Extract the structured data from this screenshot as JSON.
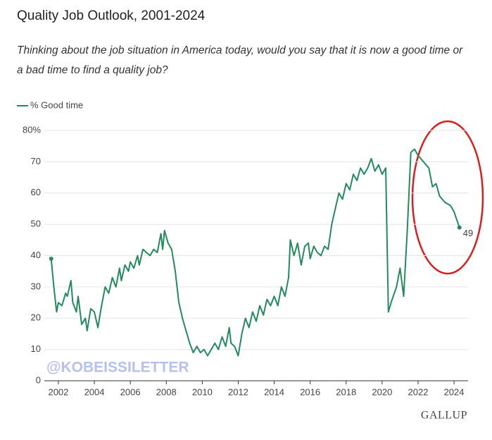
{
  "chart_data": {
    "type": "line",
    "title": "Quality Job Outlook, 2001-2024",
    "subtitle": "Thinking about the job situation in America today, would you say that it is now a good time or a bad time to find a quality job?",
    "watermark": "@KOBEISSILETTER",
    "source": "GALLUP",
    "x": [
      2001.6,
      2001.75,
      2001.9,
      2002.0,
      2002.2,
      2002.4,
      2002.5,
      2002.7,
      2002.8,
      2003.0,
      2003.1,
      2003.3,
      2003.5,
      2003.6,
      2003.8,
      2004.0,
      2004.2,
      2004.4,
      2004.6,
      2004.8,
      2005.0,
      2005.2,
      2005.4,
      2005.5,
      2005.7,
      2005.9,
      2006.0,
      2006.2,
      2006.4,
      2006.5,
      2006.7,
      2006.9,
      2007.1,
      2007.3,
      2007.5,
      2007.7,
      2007.8,
      2007.9,
      2008.1,
      2008.3,
      2008.5,
      2008.7,
      2008.9,
      2009.1,
      2009.3,
      2009.5,
      2009.7,
      2009.9,
      2010.1,
      2010.3,
      2010.5,
      2010.7,
      2010.9,
      2011.1,
      2011.3,
      2011.5,
      2011.6,
      2011.8,
      2012.0,
      2012.2,
      2012.4,
      2012.6,
      2012.8,
      2013.0,
      2013.2,
      2013.4,
      2013.6,
      2013.8,
      2014.0,
      2014.2,
      2014.4,
      2014.6,
      2014.8,
      2014.9,
      2015.1,
      2015.3,
      2015.5,
      2015.7,
      2015.9,
      2016.0,
      2016.2,
      2016.4,
      2016.6,
      2016.8,
      2017.0,
      2017.2,
      2017.4,
      2017.6,
      2017.8,
      2018.0,
      2018.2,
      2018.4,
      2018.6,
      2018.8,
      2019.0,
      2019.2,
      2019.4,
      2019.6,
      2019.8,
      2020.0,
      2020.2,
      2020.35,
      2020.5,
      2020.8,
      2021.0,
      2021.2,
      2021.4,
      2021.6,
      2021.8,
      2022.0,
      2022.3,
      2022.6,
      2022.8,
      2023.0,
      2023.2,
      2023.5,
      2023.8,
      2024.0,
      2024.3
    ],
    "series": [
      {
        "name": "% Good time",
        "color": "#238b5c",
        "values": [
          39,
          30,
          22,
          25,
          24,
          28,
          27,
          32,
          25,
          22,
          27,
          18,
          20,
          16,
          23,
          22,
          17,
          24,
          30,
          28,
          33,
          30,
          36,
          32,
          37,
          35,
          38,
          36,
          40,
          37,
          42,
          41,
          40,
          42,
          41,
          47,
          42,
          48,
          44,
          42,
          35,
          25,
          20,
          16,
          12,
          9,
          11,
          9,
          10,
          8,
          10,
          12,
          10,
          14,
          11,
          17,
          12,
          11,
          8,
          15,
          20,
          17,
          22,
          19,
          24,
          21,
          26,
          24,
          27,
          24,
          30,
          27,
          33,
          45,
          40,
          44,
          37,
          43,
          44,
          39,
          43,
          41,
          40,
          43,
          42,
          50,
          55,
          60,
          58,
          63,
          61,
          66,
          64,
          68,
          66,
          68,
          71,
          67,
          69,
          66,
          68,
          22,
          25,
          30,
          36,
          27,
          48,
          73,
          74,
          72,
          70,
          68,
          62,
          63,
          59,
          57,
          56,
          54,
          49
        ]
      }
    ],
    "xlim": [
      2001.22,
      2024.78
    ],
    "xticks": [
      2002,
      2004,
      2006,
      2008,
      2010,
      2012,
      2014,
      2016,
      2018,
      2020,
      2022,
      2024
    ],
    "ylim": [
      0,
      80
    ],
    "yticks": [
      0,
      10,
      20,
      30,
      40,
      50,
      60,
      70,
      {
        "value": 80,
        "label": "80%"
      }
    ],
    "grid": true,
    "legend": "top-left"
  }
}
